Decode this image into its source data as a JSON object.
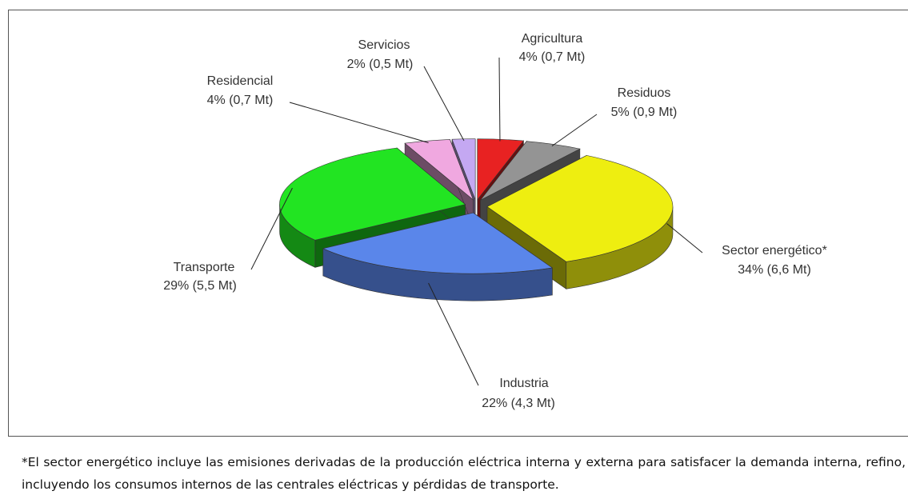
{
  "chart_data": {
    "type": "pie3d",
    "categories": [
      "Agricultura",
      "Residuos",
      "Sector energético*",
      "Industria",
      "Transporte",
      "Residencial",
      "Servicios"
    ],
    "values": [
      4,
      5,
      34,
      22,
      29,
      4,
      2
    ],
    "value_labels": [
      "4% (0,7 Mt)",
      "5% (0,9 Mt)",
      "34% (6,6 Mt)",
      "22% (4,3 Mt)",
      "29% (5,5 Mt)",
      "4% (0,7 Mt)",
      "2% (0,5 Mt)"
    ],
    "colors": [
      "#e82222",
      "#949494",
      "#eeee10",
      "#5a86ea",
      "#22e422",
      "#f0a8e0",
      "#c4a8f2"
    ],
    "footnote": "*El sector energético incluye las emisiones derivadas de la producción eléctrica interna y externa para satisfacer la demanda interna, refino, incluyendo los consumos internos de las centrales eléctricas y pérdidas de transporte."
  }
}
